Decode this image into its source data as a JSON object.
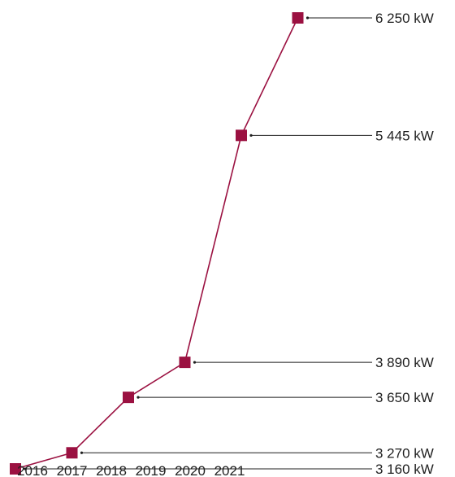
{
  "chart_data": {
    "type": "line",
    "title": "",
    "xlabel": "",
    "ylabel": "",
    "x": [
      "2016",
      "2017",
      "2018",
      "2019",
      "2020",
      "2021"
    ],
    "series": [
      {
        "values": [
          3160,
          3270,
          3650,
          3890,
          5445,
          6250
        ]
      }
    ],
    "value_labels": [
      "3 160 kW",
      "3 270 kW",
      "3 650 kW",
      "3 890 kW",
      "5 445 kW",
      "6 250 kW"
    ],
    "unit": "kW",
    "ylim": [
      3160,
      6250
    ],
    "grid": false,
    "legend": "none",
    "colors": {
      "line": "#9b1141",
      "marker": "#9b1141",
      "leader": "#1f1f1f",
      "text": "#1f1f1f"
    }
  }
}
